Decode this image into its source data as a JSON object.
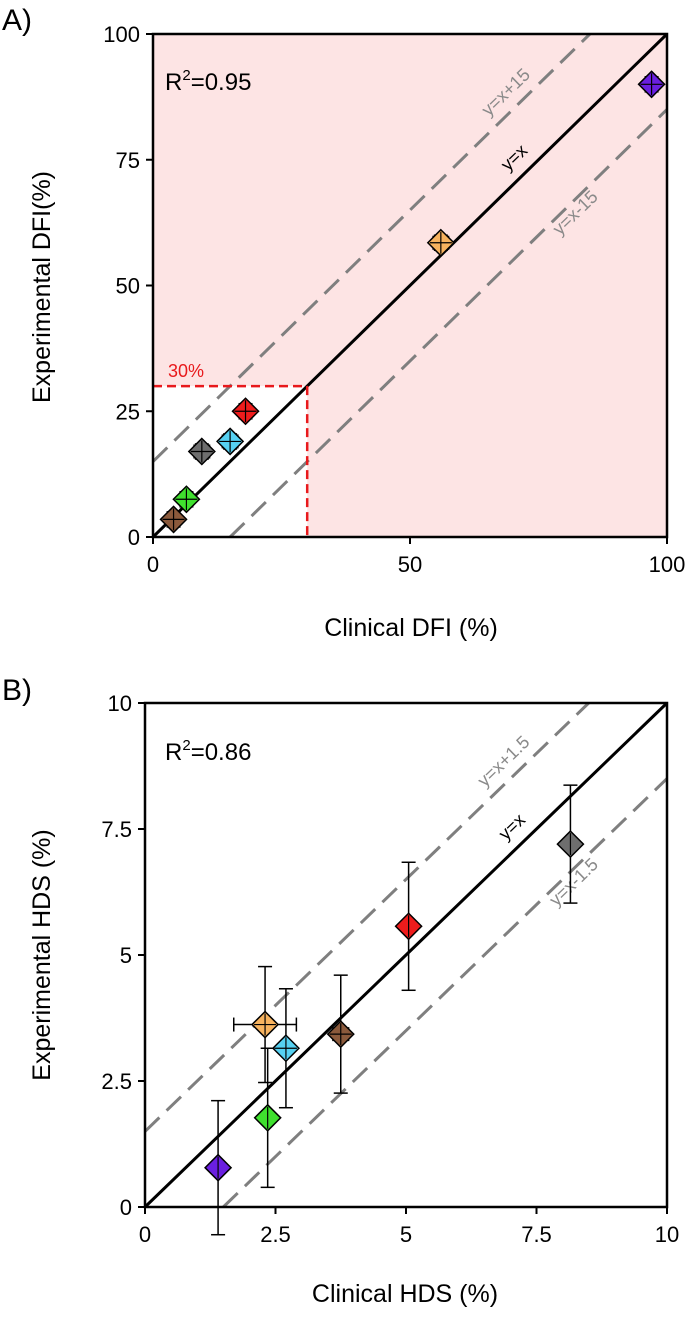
{
  "chart_data": [
    {
      "type": "scatter",
      "panel_label": "A)",
      "xlabel": "Clinical DFI (%)",
      "ylabel": "Experimental DFI(%)",
      "xlim": [
        0,
        100
      ],
      "ylim": [
        0,
        100
      ],
      "xticks": [
        0,
        50,
        100
      ],
      "yticks": [
        0,
        25,
        50,
        75,
        100
      ],
      "xtick_labels": [
        "0",
        "50",
        "100"
      ],
      "ytick_labels": [
        "0",
        "25",
        "50",
        "75",
        "100"
      ],
      "r2_label": "R",
      "r2_exp": "2",
      "r2_value": "=0.95",
      "shading": {
        "color": "#fde4e4",
        "excluded_region": {
          "x": [
            0,
            30
          ],
          "y": [
            0,
            30
          ]
        }
      },
      "threshold": {
        "value": 30,
        "label": "30%",
        "color": "#e8191c"
      },
      "reference_lines": [
        {
          "label": "y=x",
          "offset": 0,
          "style": "solid",
          "color": "#000000"
        },
        {
          "label": "y=x+15",
          "offset": 15,
          "style": "dashed",
          "color": "#7f7f7f"
        },
        {
          "label": "y=x-15",
          "offset": -15,
          "style": "dashed",
          "color": "#7f7f7f"
        }
      ],
      "points": [
        {
          "name": "purple",
          "x": 97,
          "y": 90,
          "xerr": 1,
          "yerr": 1.5,
          "color": "#6a1fe0"
        },
        {
          "name": "orange",
          "x": 56,
          "y": 58.5,
          "xerr": 1.5,
          "yerr": 1.5,
          "color": "#f7b35f"
        },
        {
          "name": "red",
          "x": 18,
          "y": 25,
          "xerr": 1,
          "yerr": 1.5,
          "color": "#ee1c1c"
        },
        {
          "name": "cyan",
          "x": 15,
          "y": 19,
          "xerr": 1.5,
          "yerr": 1.5,
          "color": "#56d1f2"
        },
        {
          "name": "gray",
          "x": 9.5,
          "y": 17,
          "xerr": 1.5,
          "yerr": 1.5,
          "color": "#6e6e6e"
        },
        {
          "name": "green",
          "x": 6.5,
          "y": 7.5,
          "xerr": 1,
          "yerr": 1.5,
          "color": "#3fe02e"
        },
        {
          "name": "brown",
          "x": 4,
          "y": 3.5,
          "xerr": 1,
          "yerr": 1.5,
          "color": "#8b5a3c"
        }
      ]
    },
    {
      "type": "scatter",
      "panel_label": "B)",
      "xlabel": "Clinical HDS (%)",
      "ylabel": "Experimental HDS (%)",
      "xlim": [
        0,
        10
      ],
      "ylim": [
        0,
        10
      ],
      "xticks": [
        0,
        2.5,
        5,
        7.5,
        10
      ],
      "yticks": [
        0,
        2.5,
        5,
        7.5,
        10
      ],
      "xtick_labels": [
        "0",
        "2.5",
        "5",
        "7.5",
        "10"
      ],
      "ytick_labels": [
        "0",
        "2.5",
        "5",
        "7.5",
        "10"
      ],
      "r2_label": "R",
      "r2_exp": "2",
      "r2_value": "=0.86",
      "reference_lines": [
        {
          "label": "y=x",
          "offset": 0,
          "style": "solid",
          "color": "#000000"
        },
        {
          "label": "y=x+1.5",
          "offset": 1.5,
          "style": "dashed",
          "color": "#7f7f7f"
        },
        {
          "label": "y=x-1.5",
          "offset": -1.5,
          "style": "dashed",
          "color": "#7f7f7f"
        }
      ],
      "points": [
        {
          "name": "gray",
          "x": 8.15,
          "y": 7.2,
          "xerr": 0,
          "yerr": 1.17,
          "color": "#6e6e6e"
        },
        {
          "name": "red",
          "x": 5.05,
          "y": 5.57,
          "xerr": 0,
          "yerr": 1.27,
          "color": "#ee1c1c"
        },
        {
          "name": "brown",
          "x": 3.75,
          "y": 3.43,
          "xerr": 0.15,
          "yerr": 1.17,
          "color": "#8b5a3c"
        },
        {
          "name": "orange",
          "x": 2.3,
          "y": 3.62,
          "xerr": 0.6,
          "yerr": 1.15,
          "color": "#f7b35f"
        },
        {
          "name": "cyan",
          "x": 2.7,
          "y": 3.15,
          "xerr": 0.1,
          "yerr": 1.18,
          "color": "#56d1f2"
        },
        {
          "name": "green",
          "x": 2.35,
          "y": 1.77,
          "xerr": 0,
          "yerr": 1.38,
          "color": "#3fe02e"
        },
        {
          "name": "purple",
          "x": 1.4,
          "y": 0.78,
          "xerr": 0,
          "yerr": 1.33,
          "color": "#6a1fe0"
        }
      ]
    }
  ]
}
